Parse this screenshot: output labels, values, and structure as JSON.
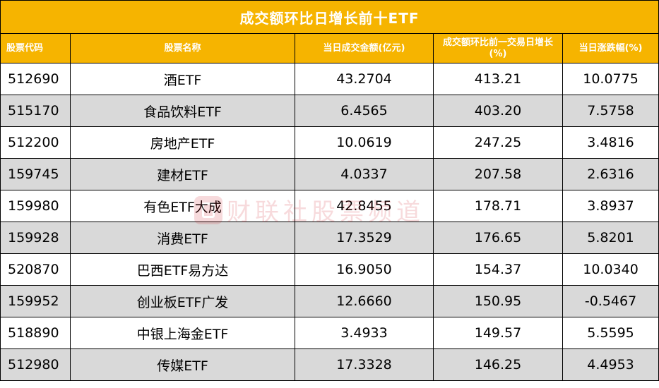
{
  "table": {
    "title": "成交额环比日增长前十ETF",
    "headers": {
      "code": "股票代码",
      "name": "股票名称",
      "turnover": "当日成交金额(亿元)",
      "growth": "成交额环比前一交易日增长(%)",
      "change": "当日涨跌幅(%)"
    },
    "rows": [
      {
        "code": "512690",
        "name": "酒ETF",
        "turnover": "43.2704",
        "growth": "413.21",
        "change": "10.0775"
      },
      {
        "code": "515170",
        "name": "食品饮料ETF",
        "turnover": "6.4565",
        "growth": "403.20",
        "change": "7.5758"
      },
      {
        "code": "512200",
        "name": "房地产ETF",
        "turnover": "10.0619",
        "growth": "247.25",
        "change": "3.4816"
      },
      {
        "code": "159745",
        "name": "建材ETF",
        "turnover": "4.0337",
        "growth": "207.58",
        "change": "2.6316"
      },
      {
        "code": "159980",
        "name": "有色ETF大成",
        "turnover": "42.8455",
        "growth": "178.71",
        "change": "3.8937"
      },
      {
        "code": "159928",
        "name": "消费ETF",
        "turnover": "17.3529",
        "growth": "176.65",
        "change": "5.8201"
      },
      {
        "code": "520870",
        "name": "巴西ETF易方达",
        "turnover": "16.9050",
        "growth": "154.37",
        "change": "10.0340"
      },
      {
        "code": "159952",
        "name": "创业板ETF广发",
        "turnover": "12.6660",
        "growth": "150.95",
        "change": "-0.5467"
      },
      {
        "code": "518890",
        "name": "中银上海金ETF",
        "turnover": "3.4933",
        "growth": "149.57",
        "change": "5.5595"
      },
      {
        "code": "512980",
        "name": "传媒ETF",
        "turnover": "17.3328",
        "growth": "146.25",
        "change": "4.4953"
      }
    ]
  },
  "watermark": {
    "text": "财联社股票频道",
    "logo_color": "#d2232a"
  },
  "colors": {
    "header_bg": "#f6b400",
    "header_text": "#ffffff",
    "row_alt_bg": "#d9d9d9"
  }
}
